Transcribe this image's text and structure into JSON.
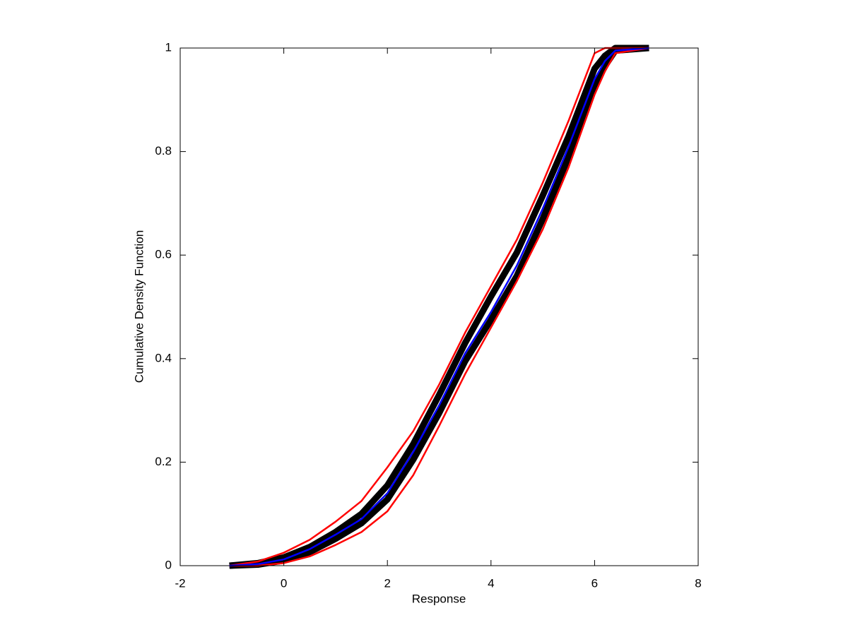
{
  "chart_data": {
    "type": "line",
    "xlabel": "Response",
    "ylabel": "Cumulative Density Function",
    "x": [
      -1.05,
      -0.5,
      0,
      0.5,
      1,
      1.5,
      2,
      2.5,
      3,
      3.5,
      4,
      4.5,
      5,
      5.5,
      6,
      6.2,
      6.4,
      7.05
    ],
    "series": [
      {
        "color": "#000000",
        "values": [
          0,
          0.005,
          0.016,
          0.036,
          0.065,
          0.1,
          0.155,
          0.235,
          0.33,
          0.43,
          0.52,
          0.605,
          0.715,
          0.83,
          0.96,
          0.985,
          1,
          1
        ]
      },
      {
        "color": "#000000",
        "values": [
          0,
          0.002,
          0.01,
          0.026,
          0.052,
          0.082,
          0.128,
          0.205,
          0.295,
          0.395,
          0.475,
          0.56,
          0.67,
          0.79,
          0.925,
          0.965,
          0.995,
          1
        ]
      },
      {
        "color": "#ff0000",
        "values": [
          0,
          0.008,
          0.025,
          0.05,
          0.085,
          0.125,
          0.19,
          0.26,
          0.35,
          0.45,
          0.54,
          0.63,
          0.74,
          0.86,
          0.99,
          1,
          1,
          1
        ]
      },
      {
        "color": "#ff0000",
        "values": [
          0,
          0,
          0.005,
          0.018,
          0.04,
          0.065,
          0.105,
          0.175,
          0.27,
          0.37,
          0.46,
          0.55,
          0.65,
          0.77,
          0.91,
          0.955,
          0.99,
          1
        ]
      },
      {
        "color": "#0000ff",
        "values": [
          0,
          0.003,
          0.012,
          0.032,
          0.06,
          0.09,
          0.14,
          0.22,
          0.31,
          0.41,
          0.49,
          0.58,
          0.69,
          0.81,
          0.94,
          0.975,
          0.995,
          1
        ]
      }
    ],
    "xlim": [
      -2,
      8
    ],
    "ylim": [
      0,
      1
    ],
    "xticks": [
      -2,
      0,
      2,
      4,
      6,
      8
    ],
    "yticks": [
      0,
      0.2,
      0.4,
      0.6,
      0.8,
      1
    ]
  }
}
